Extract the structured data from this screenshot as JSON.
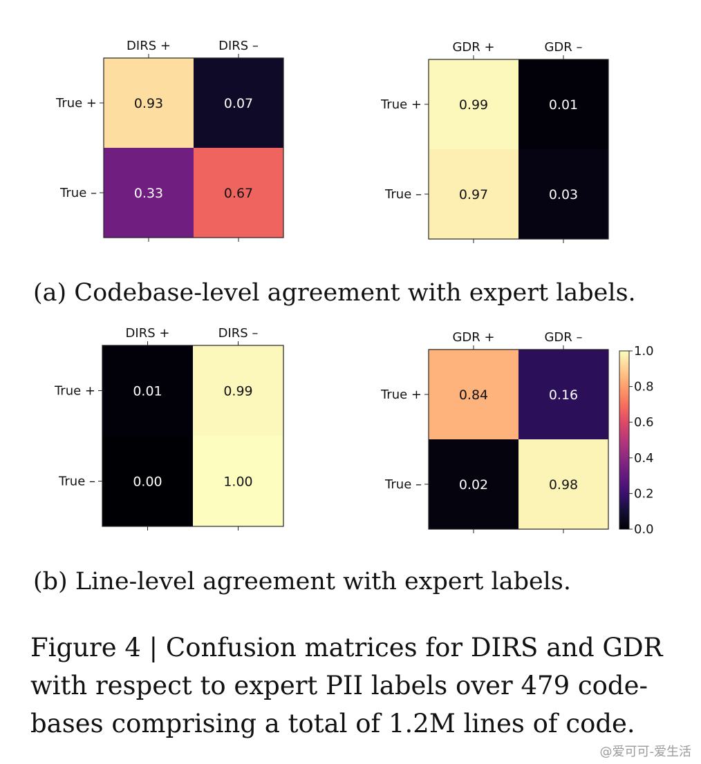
{
  "captions": {
    "a": "(a) Codebase-level agreement with expert labels.",
    "b": "(b) Line-level agreement with expert labels.",
    "figure_lines": [
      "Figure 4 | Confusion matrices for DIRS and GDR",
      "with respect to expert PII labels over 479 code-",
      "bases comprising a total of 1.2M lines of code."
    ]
  },
  "watermark": "@爱可可-爱生活",
  "colormap": "magma",
  "chart_data": [
    {
      "type": "heatmap",
      "title": "",
      "x_labels": [
        "DIRS +",
        "DIRS –"
      ],
      "y_labels": [
        "True +",
        "True –"
      ],
      "values": [
        [
          0.93,
          0.07
        ],
        [
          0.33,
          0.67
        ]
      ],
      "value_labels": [
        [
          "0.93",
          "0.07"
        ],
        [
          "0.33",
          "0.67"
        ]
      ],
      "colorbar": false,
      "panel": "a"
    },
    {
      "type": "heatmap",
      "title": "",
      "x_labels": [
        "GDR +",
        "GDR –"
      ],
      "y_labels": [
        "True +",
        "True –"
      ],
      "values": [
        [
          0.99,
          0.01
        ],
        [
          0.97,
          0.03
        ]
      ],
      "value_labels": [
        [
          "0.99",
          "0.01"
        ],
        [
          "0.97",
          "0.03"
        ]
      ],
      "colorbar": false,
      "panel": "a"
    },
    {
      "type": "heatmap",
      "title": "",
      "x_labels": [
        "DIRS +",
        "DIRS –"
      ],
      "y_labels": [
        "True +",
        "True –"
      ],
      "values": [
        [
          0.01,
          0.99
        ],
        [
          0.0,
          1.0
        ]
      ],
      "value_labels": [
        [
          "0.01",
          "0.99"
        ],
        [
          "0.00",
          "1.00"
        ]
      ],
      "colorbar": false,
      "panel": "b"
    },
    {
      "type": "heatmap",
      "title": "",
      "x_labels": [
        "GDR +",
        "GDR –"
      ],
      "y_labels": [
        "True +",
        "True –"
      ],
      "values": [
        [
          0.84,
          0.16
        ],
        [
          0.02,
          0.98
        ]
      ],
      "value_labels": [
        [
          "0.84",
          "0.16"
        ],
        [
          "0.02",
          "0.98"
        ]
      ],
      "colorbar": true,
      "colorbar_range": [
        0.0,
        1.0
      ],
      "colorbar_ticks": [
        "0.0",
        "0.2",
        "0.4",
        "0.6",
        "0.8",
        "1.0"
      ],
      "panel": "b"
    }
  ]
}
